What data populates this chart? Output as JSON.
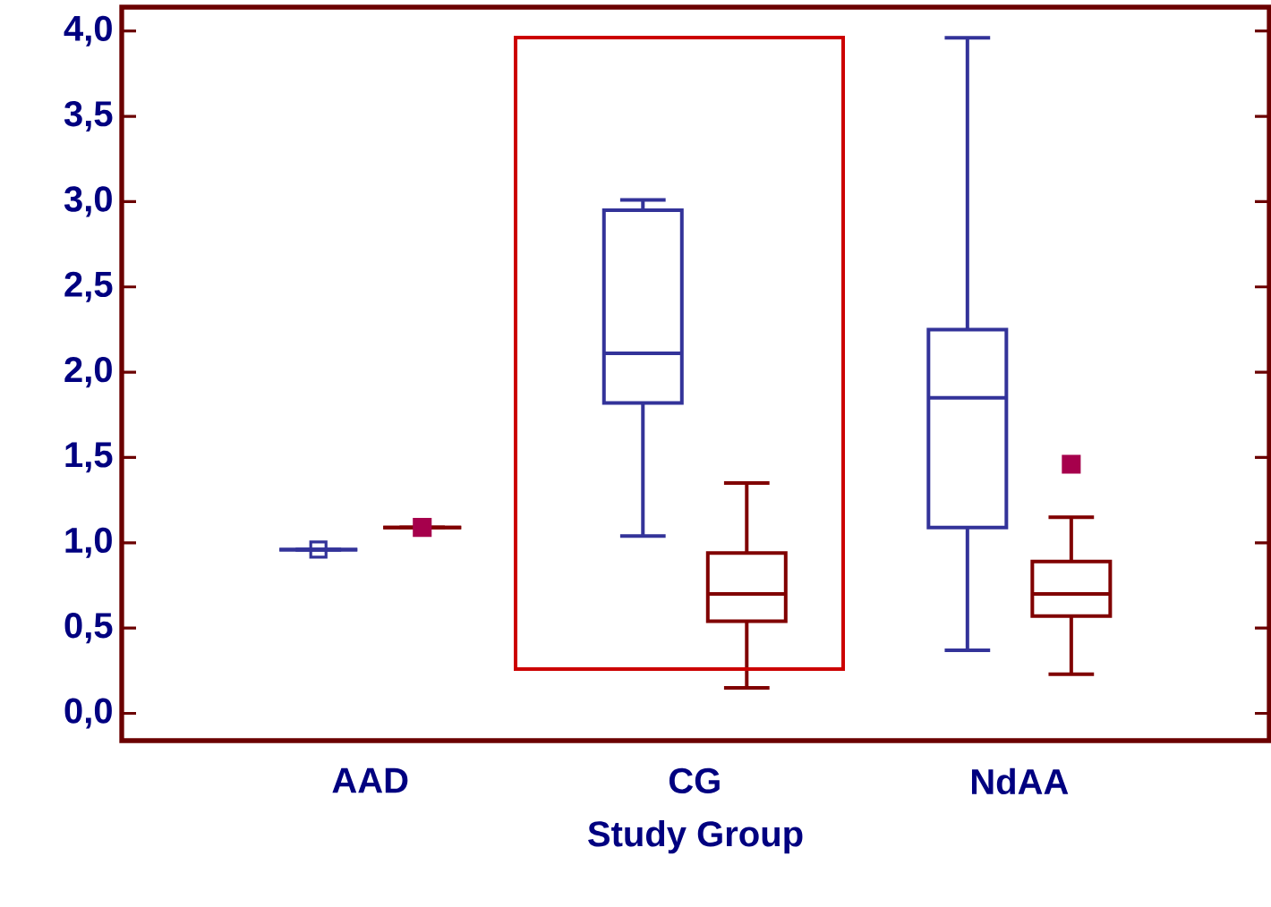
{
  "chart_data": {
    "type": "box",
    "xlabel": "Study Group",
    "categories": [
      "AAD",
      "CG",
      "NdAA"
    ],
    "ylim": [
      -0.16,
      4.14
    ],
    "yticks": [
      {
        "value": 0,
        "label": "0,0"
      },
      {
        "value": 0.5,
        "label": "0,5"
      },
      {
        "value": 1,
        "label": "1,0"
      },
      {
        "value": 1.5,
        "label": "1,5"
      },
      {
        "value": 2,
        "label": "2,0"
      },
      {
        "value": 2.5,
        "label": "2,5"
      },
      {
        "value": 3,
        "label": "3,0"
      },
      {
        "value": 3.5,
        "label": "3,5"
      },
      {
        "value": 4,
        "label": "4,0"
      }
    ],
    "grid": false,
    "marker": "square",
    "series": [
      {
        "color": "#333399",
        "boxes": [
          {
            "low": 0.96,
            "q1": 0.96,
            "median": 0.96,
            "q3": 0.96,
            "high": 0.96,
            "mean": 0.96
          },
          {
            "low": 1.04,
            "q1": 1.82,
            "median": 2.11,
            "q3": 2.95,
            "high": 3.01
          },
          {
            "low": 0.37,
            "q1": 1.09,
            "median": 1.85,
            "q3": 2.25,
            "high": 3.96
          }
        ]
      },
      {
        "color": "#800000",
        "boxes": [
          {
            "low": 1.09,
            "q1": 1.09,
            "median": 1.09,
            "q3": 1.09,
            "high": 1.09,
            "outliers": [
              1.09
            ]
          },
          {
            "low": 0.15,
            "q1": 0.54,
            "median": 0.7,
            "q3": 0.94,
            "high": 1.35
          },
          {
            "low": 0.23,
            "q1": 0.57,
            "median": 0.7,
            "q3": 0.89,
            "high": 1.15,
            "outliers": [
              1.46
            ]
          }
        ]
      }
    ]
  }
}
